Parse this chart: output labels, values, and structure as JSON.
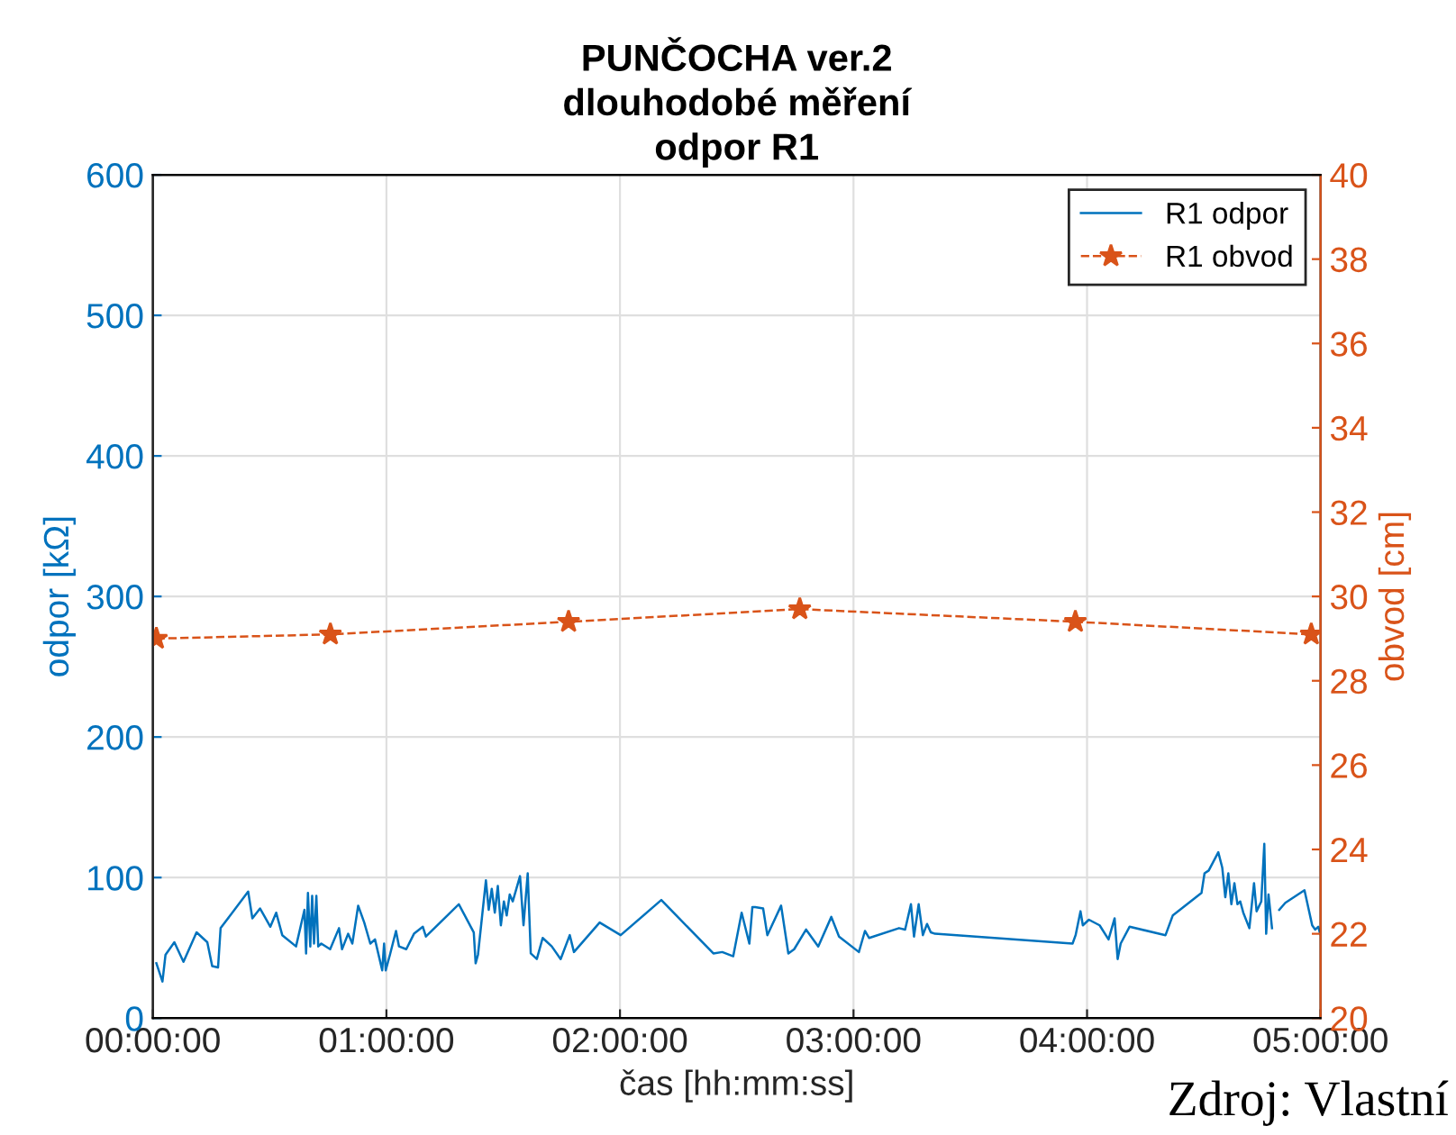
{
  "chart_data": {
    "type": "line",
    "title": "PUNČOCHA ver.2\ndlouhodobé měření\nodpor R1",
    "xlabel": "čas [hh:mm:ss]",
    "ylabel": "odpor [kΩ]",
    "y2label": "obvod [cm]",
    "xlim": [
      0,
      5
    ],
    "xticks": [
      {
        "value": 0,
        "label": "00:00:00"
      },
      {
        "value": 1,
        "label": "01:00:00"
      },
      {
        "value": 2,
        "label": "02:00:00"
      },
      {
        "value": 3,
        "label": "03:00:00"
      },
      {
        "value": 4,
        "label": "04:00:00"
      },
      {
        "value": 5,
        "label": "05:00:00"
      }
    ],
    "ylim": [
      0,
      600
    ],
    "yticks": [
      0,
      100,
      200,
      300,
      400,
      500,
      600
    ],
    "y2lim": [
      20,
      40
    ],
    "y2ticks": [
      20,
      22,
      24,
      26,
      28,
      30,
      32,
      34,
      36,
      38,
      40
    ],
    "grid": true,
    "legend": "top right",
    "annotations": [
      "Zdroj: Vlastní"
    ],
    "series": [
      {
        "name": "R1 odpor",
        "color": "#0072bd",
        "line_style": "solid",
        "marker": "none",
        "x": [
          0.015,
          0.041,
          0.054,
          0.092,
          0.131,
          0.187,
          0.233,
          0.254,
          0.279,
          0.29,
          0.408,
          0.426,
          0.459,
          0.503,
          0.528,
          0.554,
          0.613,
          0.649,
          0.656,
          0.664,
          0.674,
          0.682,
          0.69,
          0.7,
          0.708,
          0.721,
          0.759,
          0.797,
          0.81,
          0.836,
          0.854,
          0.879,
          0.905,
          0.931,
          0.951,
          0.982,
          0.99,
          0.997,
          1.015,
          1.041,
          1.054,
          1.085,
          1.118,
          1.156,
          1.169,
          1.31,
          1.374,
          1.382,
          1.392,
          1.426,
          1.438,
          1.451,
          1.464,
          1.477,
          1.49,
          1.503,
          1.515,
          1.528,
          1.541,
          1.572,
          1.587,
          1.605,
          1.618,
          1.644,
          1.669,
          1.708,
          1.746,
          1.785,
          1.803,
          1.913,
          2.003,
          2.177,
          2.4,
          2.438,
          2.485,
          2.521,
          2.554,
          2.567,
          2.579,
          2.613,
          2.631,
          2.69,
          2.721,
          2.746,
          2.797,
          2.849,
          2.905,
          2.938,
          3.023,
          3.049,
          3.067,
          3.195,
          3.221,
          3.246,
          3.259,
          3.279,
          3.297,
          3.315,
          3.331,
          3.349,
          3.938,
          3.951,
          3.972,
          3.982,
          4.008,
          4.054,
          4.092,
          4.118,
          4.131,
          4.144,
          4.182,
          4.336,
          4.367,
          4.49,
          4.503,
          4.521,
          4.562,
          4.579,
          4.592,
          4.605,
          4.618,
          4.631,
          4.644,
          4.656,
          4.669,
          4.695,
          4.715,
          4.726,
          4.746,
          4.759,
          4.767,
          4.777,
          4.792,
          4.81,
          4.823,
          4.849,
          4.931,
          4.964,
          4.977,
          4.99,
          4.998
        ],
        "values": [
          39,
          26,
          45,
          54,
          40,
          61,
          54,
          37,
          36,
          64,
          90,
          71,
          78,
          65,
          75,
          59,
          51,
          77,
          46,
          89,
          51,
          87,
          53,
          87,
          51,
          53,
          49,
          64,
          49,
          60,
          53,
          80,
          68,
          53,
          56,
          34,
          53,
          34,
          45,
          62,
          51,
          49,
          60,
          65,
          58,
          81,
          61,
          39,
          45,
          98,
          77,
          92,
          75,
          94,
          66,
          83,
          73,
          88,
          83,
          101,
          66,
          103,
          46,
          42,
          57,
          51,
          42,
          59,
          47,
          68,
          59,
          84,
          46,
          47,
          44,
          75,
          53,
          79,
          79,
          78,
          59,
          80,
          46,
          49,
          63,
          51,
          72,
          58,
          47,
          62,
          57,
          64,
          63,
          81,
          58,
          81,
          59,
          67,
          61,
          60,
          53,
          59,
          76,
          66,
          70,
          66,
          56,
          71,
          42,
          53,
          65,
          59,
          73,
          89,
          103,
          105,
          118,
          107,
          86,
          103,
          81,
          96,
          81,
          83,
          75,
          64,
          96,
          76,
          83,
          124,
          60,
          88,
          64,
          null,
          77,
          82,
          91,
          66,
          63,
          65,
          60
        ]
      },
      {
        "name": "R1 obvod",
        "color": "#d95319",
        "axis": "y2",
        "line_style": "dashed",
        "marker": "star",
        "x": [
          0.015,
          0.76,
          1.78,
          2.77,
          3.95,
          4.96
        ],
        "values": [
          29.0,
          29.1,
          29.4,
          29.7,
          29.4,
          29.1
        ]
      }
    ]
  }
}
